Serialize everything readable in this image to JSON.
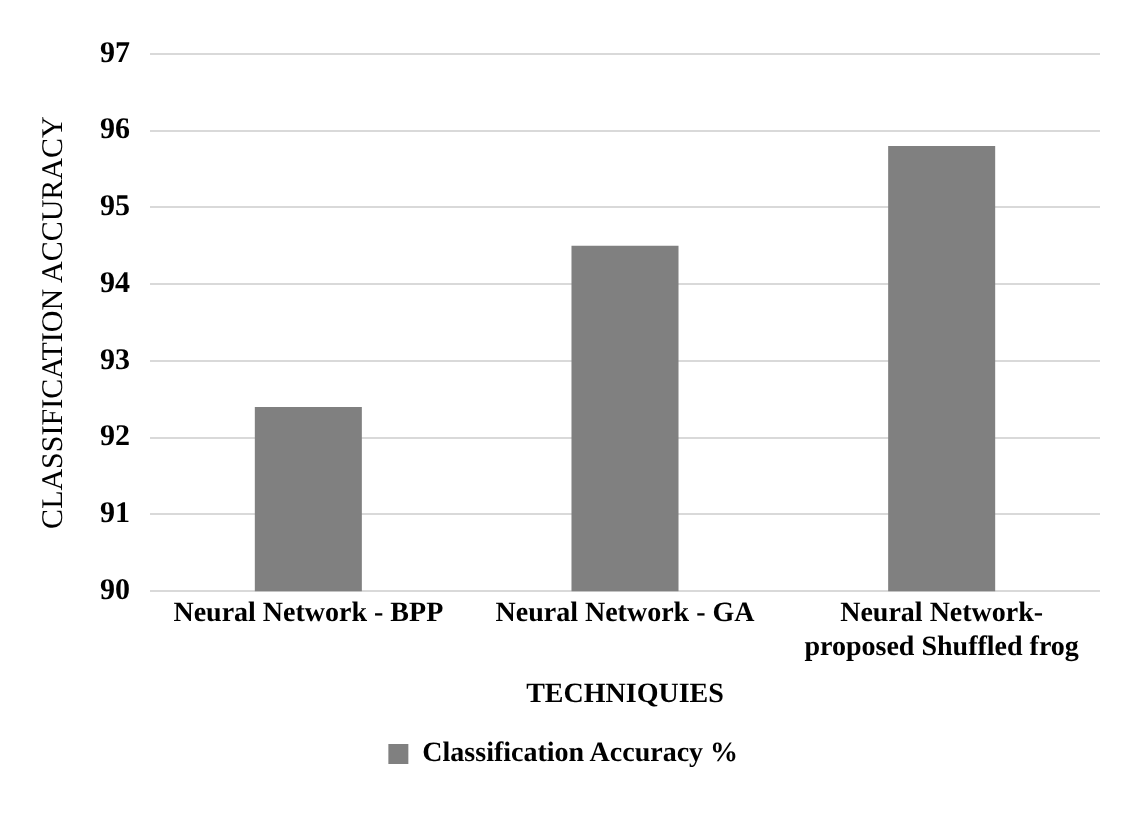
{
  "chart_data": {
    "type": "bar",
    "xlabel": "TECHNIQUIES",
    "ylabel": "CLASSIFICATION ACCURACY",
    "categories": [
      "Neural Network - BPP",
      "Neural Network - GA",
      "Neural Network- proposed Shuffled frog"
    ],
    "series": [
      {
        "name": "Classification Accuracy %",
        "color": "#808080",
        "values": [
          92.4,
          94.5,
          95.8
        ]
      }
    ],
    "ylim": [
      90,
      97
    ],
    "yticks": [
      90,
      91,
      92,
      93,
      94,
      95,
      96,
      97
    ],
    "grid": "y",
    "legend": "bottom"
  }
}
